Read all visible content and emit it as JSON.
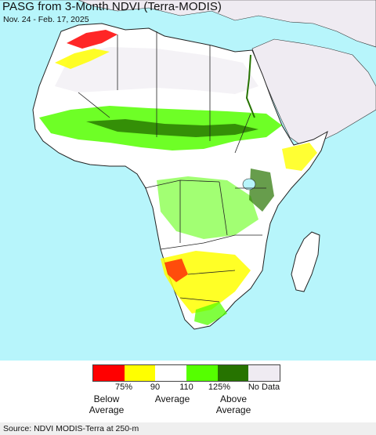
{
  "title": "PASG from 3-Month NDVI (Terra-MODIS)",
  "subtitle": "Nov. 24 - Feb. 17, 2025",
  "legend": {
    "colors": [
      {
        "name": "red",
        "hex": "#ff0000"
      },
      {
        "name": "yellow",
        "hex": "#ffff00"
      },
      {
        "name": "white",
        "hex": "#ffffff"
      },
      {
        "name": "light-green",
        "hex": "#55ff00"
      },
      {
        "name": "dark-green",
        "hex": "#267300"
      },
      {
        "name": "no-data",
        "hex": "#efebf2"
      }
    ],
    "ticks": [
      "75%",
      "90",
      "110",
      "125%",
      "No Data"
    ],
    "categories": {
      "below": "Below\nAverage",
      "average": "Average",
      "above": "Above\nAverage"
    }
  },
  "source": "Source: NDVI MODIS-Terra at 250-m",
  "map_colors": {
    "ocean": "#b7f5fb",
    "land_no_data": "#efebf2",
    "land": "#ffffff",
    "border": "#222222",
    "red": "#ff0000",
    "yellow": "#ffff00",
    "light_green": "#55ff00",
    "dark_green": "#267300"
  }
}
